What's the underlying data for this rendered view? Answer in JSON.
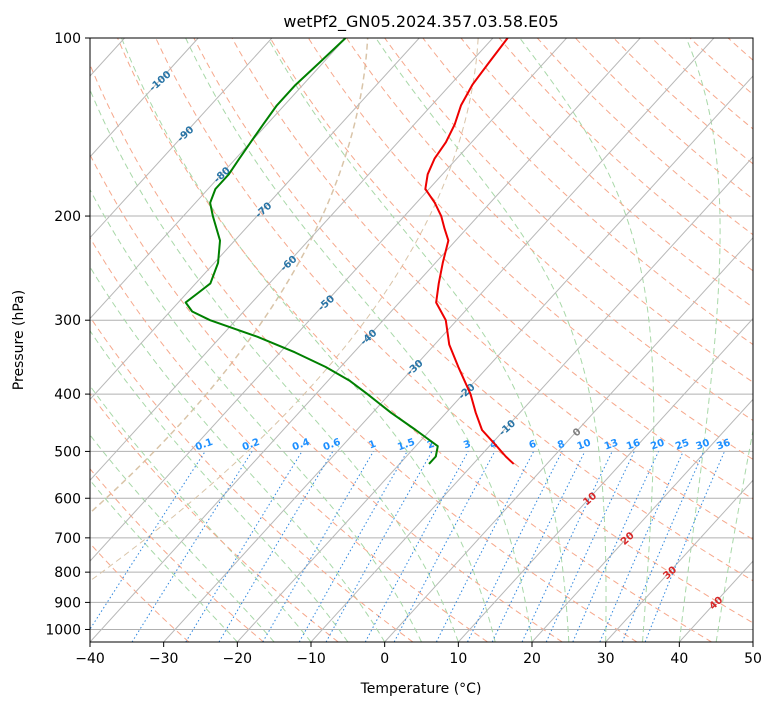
{
  "chart_data": {
    "type": "line",
    "title": "wetPf2_GN05.2024.357.03.58.E05",
    "xlabel": "Temperature (°C)",
    "ylabel": "Pressure (hPa)",
    "xlim": [
      -40,
      50
    ],
    "ylim": [
      1050,
      100
    ],
    "y_scale": "log",
    "grid": true,
    "x_ticks": [
      -40,
      -30,
      -20,
      -10,
      0,
      10,
      20,
      30,
      40,
      50
    ],
    "x_tick_labels": [
      "−40",
      "−30",
      "−20",
      "−10",
      "0",
      "10",
      "20",
      "30",
      "40",
      "50"
    ],
    "y_ticks": [
      100,
      200,
      300,
      400,
      500,
      600,
      700,
      800,
      900,
      1000
    ],
    "y_tick_labels": [
      "100",
      "200",
      "300",
      "400",
      "500",
      "600",
      "700",
      "800",
      "900",
      "1000"
    ],
    "series": [
      {
        "role": "temperature",
        "color": "#ee0000",
        "points": [
          [
            100,
            -58.0
          ],
          [
            110,
            -57.5
          ],
          [
            120,
            -57.0
          ],
          [
            130,
            -56.0
          ],
          [
            140,
            -54.5
          ],
          [
            150,
            -53.5
          ],
          [
            160,
            -53.0
          ],
          [
            170,
            -52.0
          ],
          [
            180,
            -50.5
          ],
          [
            190,
            -47.5
          ],
          [
            200,
            -45.0
          ],
          [
            210,
            -43.0
          ],
          [
            220,
            -41.0
          ],
          [
            240,
            -39.0
          ],
          [
            260,
            -37.0
          ],
          [
            280,
            -35.0
          ],
          [
            300,
            -31.5
          ],
          [
            330,
            -28.0
          ],
          [
            360,
            -24.0
          ],
          [
            400,
            -19.0
          ],
          [
            430,
            -16.0
          ],
          [
            460,
            -13.0
          ],
          [
            490,
            -9.0
          ],
          [
            510,
            -6.5
          ],
          [
            525,
            -4.5
          ]
        ]
      },
      {
        "role": "dewpoint",
        "color": "#008000",
        "points": [
          [
            100,
            -80.0
          ],
          [
            110,
            -80.5
          ],
          [
            120,
            -81.0
          ],
          [
            130,
            -81.0
          ],
          [
            140,
            -80.5
          ],
          [
            150,
            -80.0
          ],
          [
            160,
            -79.5
          ],
          [
            170,
            -79.0
          ],
          [
            180,
            -79.0
          ],
          [
            190,
            -78.0
          ],
          [
            200,
            -76.0
          ],
          [
            220,
            -72.0
          ],
          [
            240,
            -69.5
          ],
          [
            260,
            -68.0
          ],
          [
            270,
            -68.5
          ],
          [
            280,
            -69.0
          ],
          [
            290,
            -67.0
          ],
          [
            300,
            -63.5
          ],
          [
            320,
            -55.0
          ],
          [
            340,
            -48.0
          ],
          [
            360,
            -42.0
          ],
          [
            380,
            -37.0
          ],
          [
            400,
            -33.0
          ],
          [
            430,
            -27.5
          ],
          [
            460,
            -22.0
          ],
          [
            490,
            -17.0
          ],
          [
            510,
            -16.0
          ],
          [
            525,
            -16.0
          ]
        ]
      }
    ],
    "reference_lines": {
      "isotherm_labels": [
        "-100",
        "-90",
        "-80",
        "-70",
        "-60",
        "-50",
        "-40",
        "-30",
        "-20",
        "-10",
        "0",
        "10",
        "20",
        "30",
        "40"
      ],
      "mixing_ratio_labels": [
        "0.1",
        "0.2",
        "0.4",
        "0.6",
        "1",
        "1.5",
        "2",
        "3",
        "4",
        "6",
        "8",
        "10",
        "13",
        "16",
        "20",
        "25",
        "30",
        "36"
      ],
      "mixing_ratio_values": [
        0.1,
        0.2,
        0.4,
        0.6,
        1,
        1.5,
        2,
        3,
        4,
        6,
        8,
        10,
        13,
        16,
        20,
        25,
        30,
        36
      ],
      "colors": {
        "isotherm": "#b8b8b8",
        "isotherm_label_cold": "#2874a6",
        "isotherm_label_warm": "#d62728",
        "isotherm_label_zero": "#808080",
        "dry_adiabat": "#f6a88c",
        "moist_adiabat": "#a8d8a8",
        "mixing_ratio": "#2e86de",
        "mixing_ratio_label": "#1e90ff",
        "tan_arc": "#d9c4a8"
      }
    }
  }
}
